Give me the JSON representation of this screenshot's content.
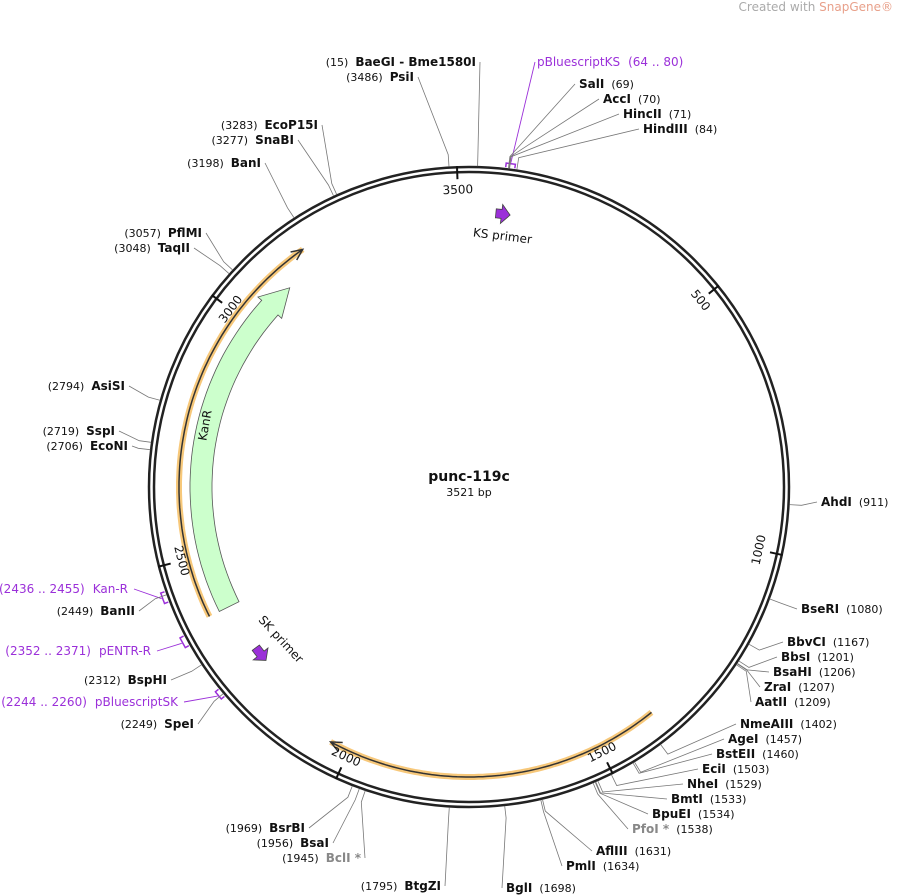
{
  "watermark": {
    "prefix": "Created with",
    "brand": "SnapGene®"
  },
  "plasmid": {
    "name": "punc-119c",
    "length": {
      "value": 3521,
      "label": "3521 bp"
    }
  },
  "ticks": [
    500,
    1000,
    1500,
    2000,
    2500,
    3000,
    3500
  ],
  "features": [
    {
      "name": "pBluescriptKS",
      "range": {
        "value": [
          64,
          80
        ],
        "label": "(64 .. 80)"
      }
    },
    {
      "name": "Kan-R",
      "range": {
        "value": [
          2436,
          2455
        ],
        "label": "(2436 .. 2455)"
      }
    },
    {
      "name": "pENTR-R",
      "range": {
        "value": [
          2352,
          2371
        ],
        "label": "(2352 .. 2371)"
      }
    },
    {
      "name": "pBluescriptSK",
      "range": {
        "value": [
          2244,
          2260
        ],
        "label": "(2244 .. 2260)"
      }
    }
  ],
  "annotations": {
    "kanr": "KanR",
    "ks_primer": "KS primer",
    "sk_primer": "SK primer"
  },
  "sites": [
    {
      "name": "BaeGI - Bme1580I",
      "position": {
        "value": 15,
        "label": "(15)"
      }
    },
    {
      "name": "PsiI",
      "position": {
        "value": 3486,
        "label": "(3486)"
      }
    },
    {
      "name": "EcoP15I",
      "position": {
        "value": 3283,
        "label": "(3283)"
      }
    },
    {
      "name": "SnaBI",
      "position": {
        "value": 3277,
        "label": "(3277)"
      }
    },
    {
      "name": "BanI",
      "position": {
        "value": 3198,
        "label": "(3198)"
      }
    },
    {
      "name": "PflMI",
      "position": {
        "value": 3057,
        "label": "(3057)"
      }
    },
    {
      "name": "TaqII",
      "position": {
        "value": 3048,
        "label": "(3048)"
      }
    },
    {
      "name": "AsiSI",
      "position": {
        "value": 2794,
        "label": "(2794)"
      }
    },
    {
      "name": "SspI",
      "position": {
        "value": 2719,
        "label": "(2719)"
      }
    },
    {
      "name": "EcoNI",
      "position": {
        "value": 2706,
        "label": "(2706)"
      }
    },
    {
      "name": "BanII",
      "position": {
        "value": 2449,
        "label": "(2449)"
      }
    },
    {
      "name": "BspHI",
      "position": {
        "value": 2312,
        "label": "(2312)"
      }
    },
    {
      "name": "SpeI",
      "position": {
        "value": 2249,
        "label": "(2249)"
      }
    },
    {
      "name": "BsrBI",
      "position": {
        "value": 1969,
        "label": "(1969)"
      }
    },
    {
      "name": "BsaI",
      "position": {
        "value": 1956,
        "label": "(1956)"
      }
    },
    {
      "name": "BclI *",
      "position": {
        "value": 1945,
        "label": "(1945)"
      },
      "muted": true
    },
    {
      "name": "BtgZI",
      "position": {
        "value": 1795,
        "label": "(1795)"
      }
    },
    {
      "name": "SalI",
      "position": {
        "value": 69,
        "label": "(69)"
      }
    },
    {
      "name": "AccI",
      "position": {
        "value": 70,
        "label": "(70)"
      }
    },
    {
      "name": "HincII",
      "position": {
        "value": 71,
        "label": "(71)"
      }
    },
    {
      "name": "HindIII",
      "position": {
        "value": 84,
        "label": "(84)"
      }
    },
    {
      "name": "AhdI",
      "position": {
        "value": 911,
        "label": "(911)"
      }
    },
    {
      "name": "BseRI",
      "position": {
        "value": 1080,
        "label": "(1080)"
      }
    },
    {
      "name": "BbvCI",
      "position": {
        "value": 1167,
        "label": "(1167)"
      }
    },
    {
      "name": "BbsI",
      "position": {
        "value": 1201,
        "label": "(1201)"
      }
    },
    {
      "name": "BsaHI",
      "position": {
        "value": 1206,
        "label": "(1206)"
      }
    },
    {
      "name": "ZraI",
      "position": {
        "value": 1207,
        "label": "(1207)"
      }
    },
    {
      "name": "AatII",
      "position": {
        "value": 1209,
        "label": "(1209)"
      }
    },
    {
      "name": "NmeAIII",
      "position": {
        "value": 1402,
        "label": "(1402)"
      }
    },
    {
      "name": "AgeI",
      "position": {
        "value": 1457,
        "label": "(1457)"
      }
    },
    {
      "name": "BstEII",
      "position": {
        "value": 1460,
        "label": "(1460)"
      }
    },
    {
      "name": "EciI",
      "position": {
        "value": 1503,
        "label": "(1503)"
      }
    },
    {
      "name": "NheI",
      "position": {
        "value": 1529,
        "label": "(1529)"
      }
    },
    {
      "name": "BmtI",
      "position": {
        "value": 1533,
        "label": "(1533)"
      }
    },
    {
      "name": "BpuEI",
      "position": {
        "value": 1534,
        "label": "(1534)"
      }
    },
    {
      "name": "PfoI *",
      "position": {
        "value": 1538,
        "label": "(1538)"
      },
      "muted": true
    },
    {
      "name": "AflIII",
      "position": {
        "value": 1631,
        "label": "(1631)"
      }
    },
    {
      "name": "PmlI",
      "position": {
        "value": 1634,
        "label": "(1634)"
      }
    },
    {
      "name": "BglI",
      "position": {
        "value": 1698,
        "label": "(1698)"
      }
    }
  ]
}
